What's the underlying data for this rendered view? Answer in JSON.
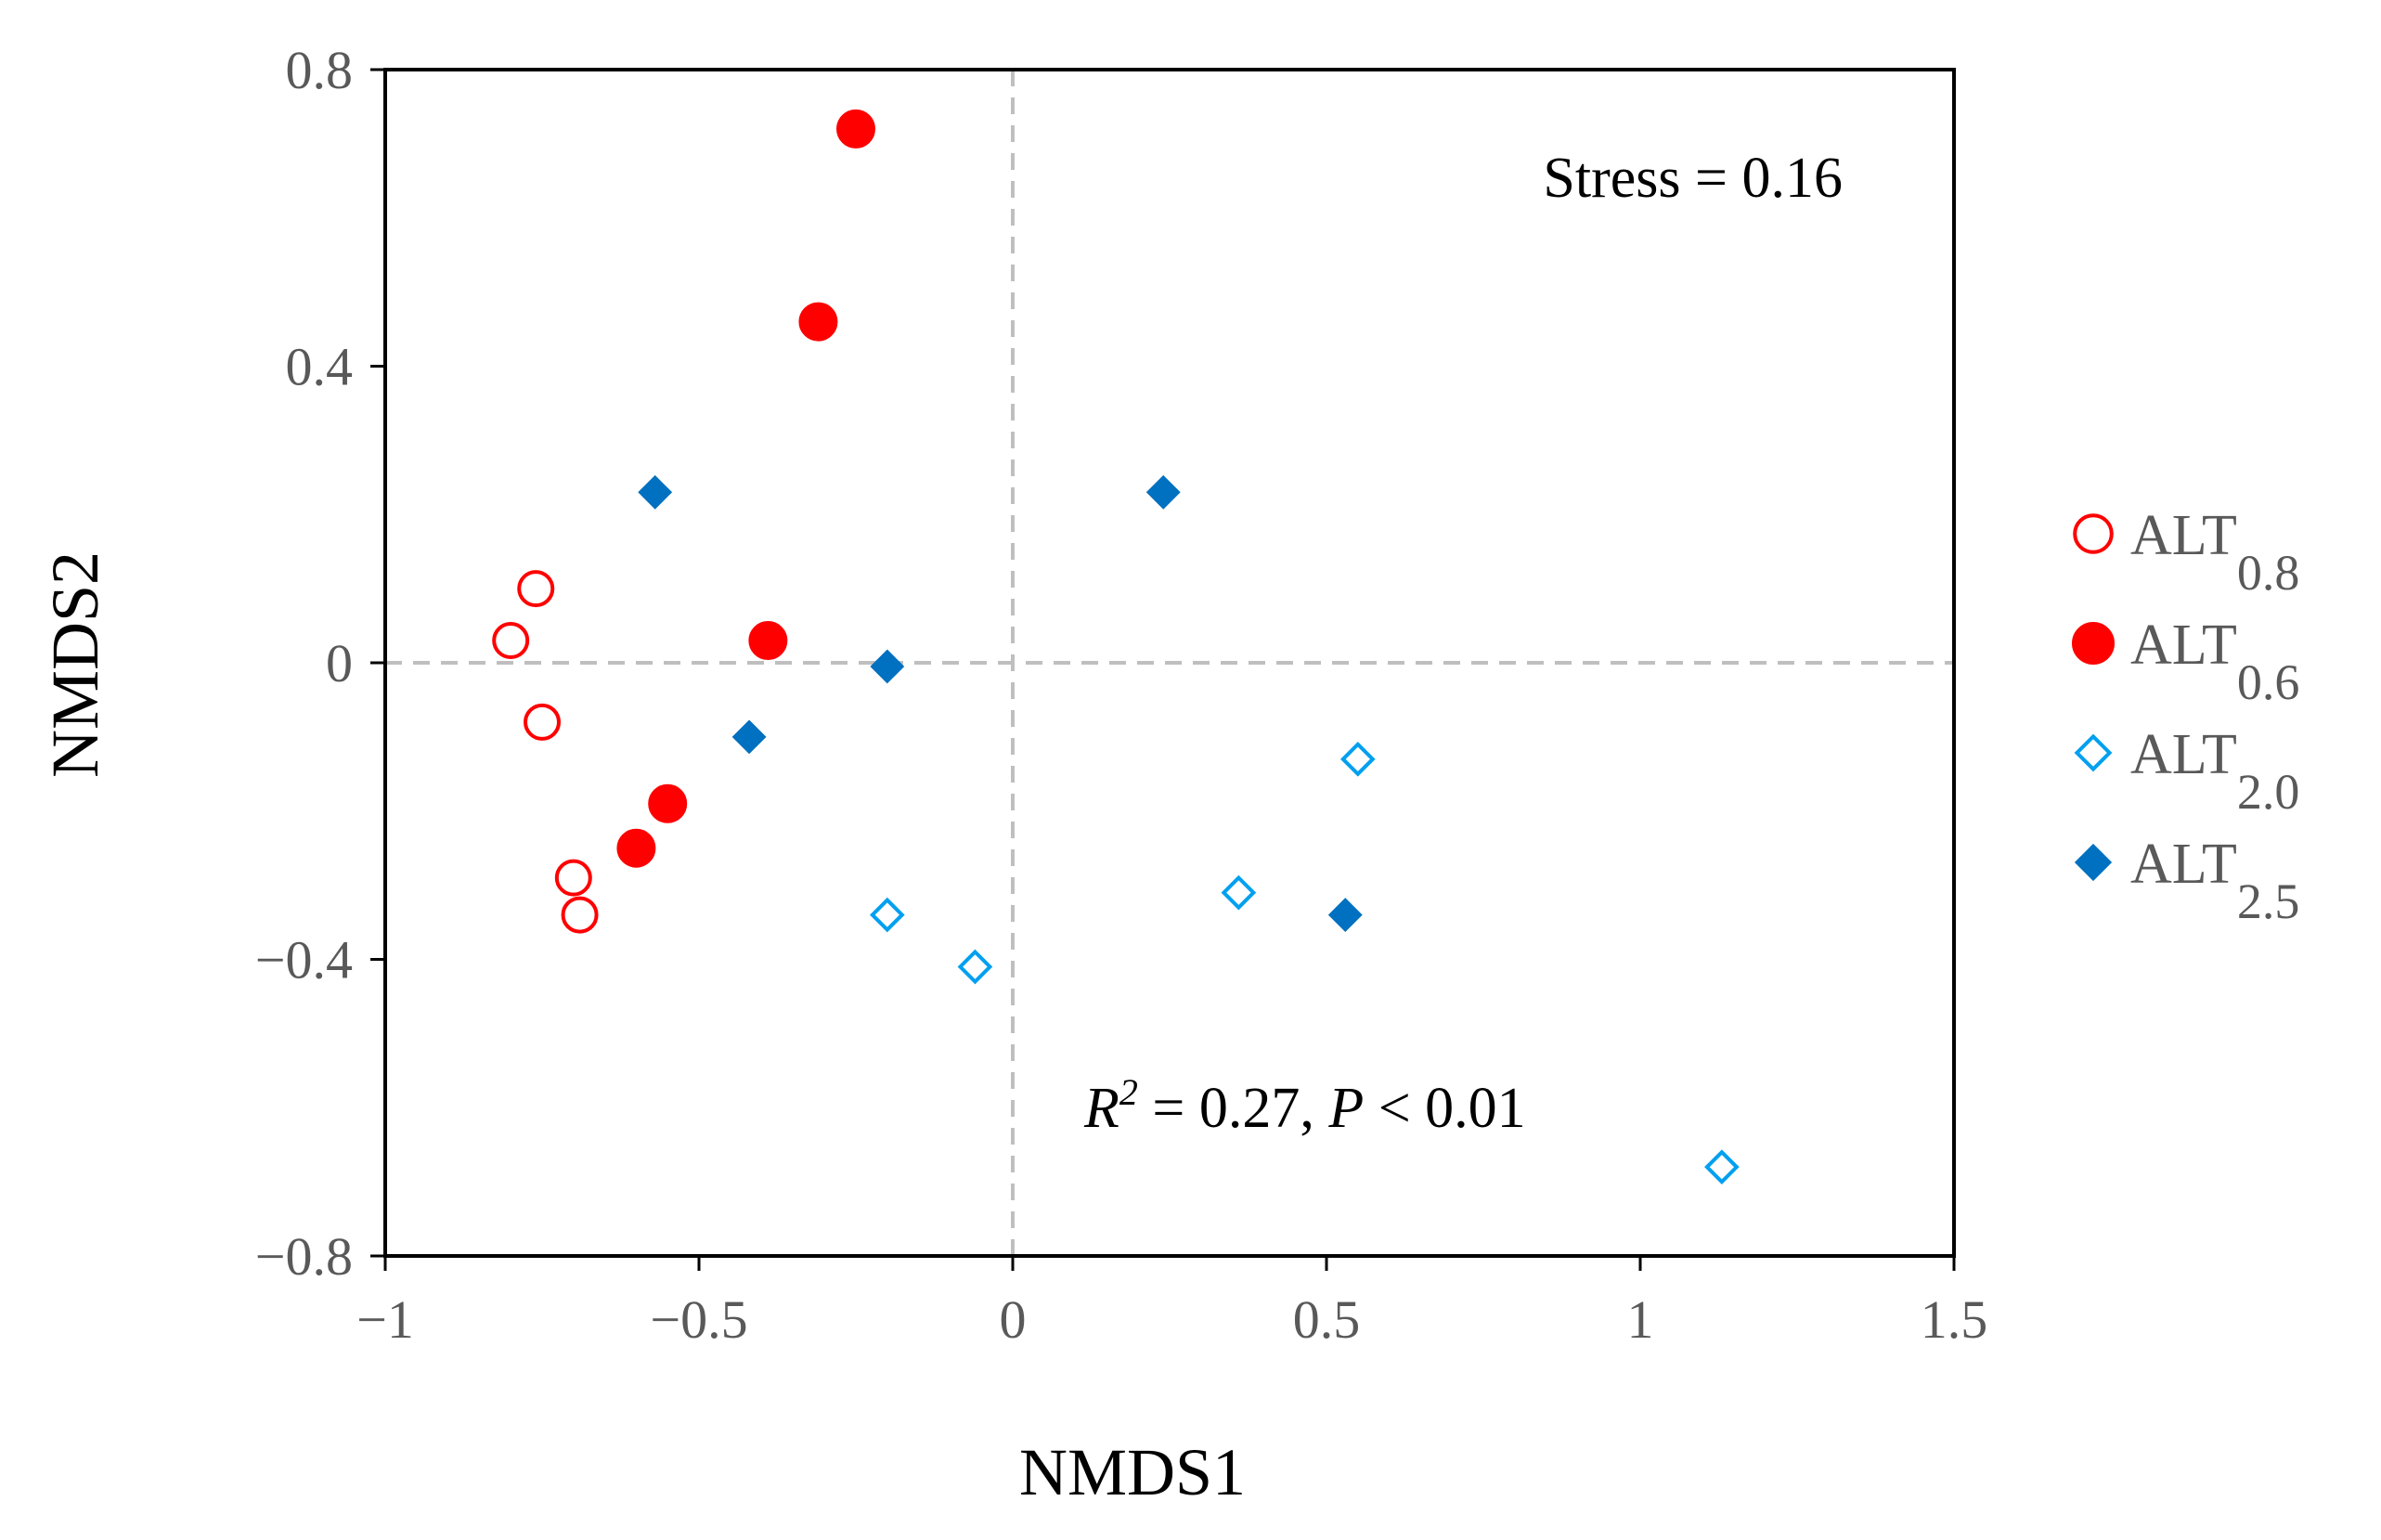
{
  "chart_data": {
    "type": "scatter",
    "xlabel": "NMDS1",
    "ylabel": "NMDS2",
    "xlim": [
      -1,
      1.5
    ],
    "ylim": [
      -0.8,
      0.8
    ],
    "xticks": [
      -1,
      -0.5,
      0,
      0.5,
      1,
      1.5
    ],
    "yticks": [
      -0.8,
      -0.4,
      0,
      0.4,
      0.8
    ],
    "xtick_labels": [
      "−1",
      "−0.5",
      "0",
      "0.5",
      "1",
      "1.5"
    ],
    "ytick_labels": [
      "−0.8",
      "−0.4",
      "0",
      "0.4",
      "0.8"
    ],
    "reference_lines": {
      "x": 0,
      "y": 0,
      "style": "dashed"
    },
    "annotations": {
      "stress": "Stress = 0.16",
      "stat_r": "R",
      "stat_exp": "2",
      "stat_rest": " = 0.27, ",
      "stat_p": "P",
      "stat_tail": " < 0.01"
    },
    "legend_position": "right",
    "series": [
      {
        "name": "ALT0.8",
        "label_main": "ALT",
        "label_sub": "0.8",
        "marker": "circle-open",
        "color": "#ff0000",
        "points": [
          {
            "x": -0.8,
            "y": 0.03
          },
          {
            "x": -0.76,
            "y": 0.1
          },
          {
            "x": -0.75,
            "y": -0.08
          },
          {
            "x": -0.7,
            "y": -0.29
          },
          {
            "x": -0.69,
            "y": -0.34
          }
        ]
      },
      {
        "name": "ALT0.6",
        "label_main": "ALT",
        "label_sub": "0.6",
        "marker": "circle-filled",
        "color": "#ff0000",
        "points": [
          {
            "x": -0.25,
            "y": 0.72
          },
          {
            "x": -0.31,
            "y": 0.46
          },
          {
            "x": -0.39,
            "y": 0.03
          },
          {
            "x": -0.55,
            "y": -0.19
          },
          {
            "x": -0.6,
            "y": -0.25
          }
        ]
      },
      {
        "name": "ALT2.0",
        "label_main": "ALT",
        "label_sub": "2.0",
        "marker": "diamond-open",
        "color": "#00a0f0",
        "points": [
          {
            "x": 0.55,
            "y": -0.13
          },
          {
            "x": 0.36,
            "y": -0.31
          },
          {
            "x": -0.2,
            "y": -0.34
          },
          {
            "x": -0.06,
            "y": -0.41
          },
          {
            "x": 1.13,
            "y": -0.68
          }
        ]
      },
      {
        "name": "ALT2.5",
        "label_main": "ALT",
        "label_sub": "2.5",
        "marker": "diamond-filled",
        "color": "#0070c0",
        "points": [
          {
            "x": -0.57,
            "y": 0.23
          },
          {
            "x": 0.24,
            "y": 0.23
          },
          {
            "x": -0.2,
            "y": -0.005
          },
          {
            "x": -0.42,
            "y": -0.1
          },
          {
            "x": 0.53,
            "y": -0.34
          }
        ]
      }
    ]
  }
}
